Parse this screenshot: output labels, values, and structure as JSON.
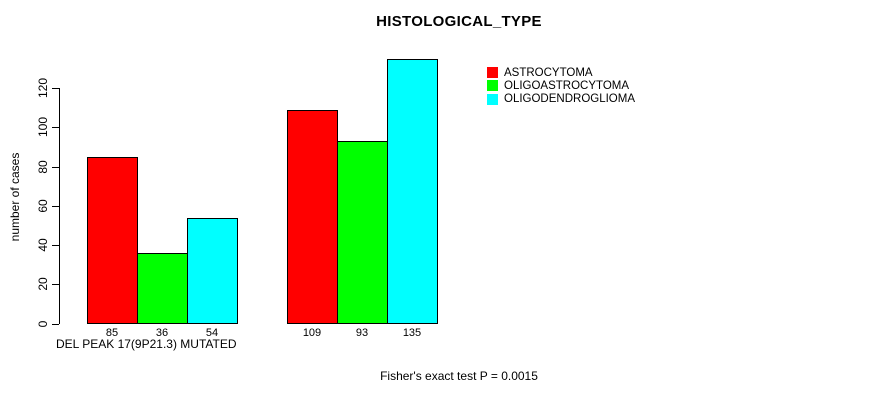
{
  "title": "HISTOLOGICAL_TYPE",
  "footer": "Fisher's exact test P = 0.0015",
  "chart_data": {
    "type": "bar",
    "title": "HISTOLOGICAL_TYPE",
    "ylabel": "number of cases",
    "xlabel": "DEL PEAK 17(9P21.3) MUTATED",
    "ylim": [
      0,
      120
    ],
    "yticks": [
      0,
      20,
      40,
      60,
      80,
      100,
      120
    ],
    "grid": false,
    "legend_position": "top-right",
    "series": [
      {
        "name": "ASTROCYTOMA",
        "color": "#ff0000"
      },
      {
        "name": "OLIGOASTROCYTOMA",
        "color": "#00ff00"
      },
      {
        "name": "OLIGODENDROGLIOMA",
        "color": "#00ffff"
      }
    ],
    "groups": [
      {
        "label": "DEL PEAK 17(9P21.3) MUTATED",
        "values": [
          85,
          36,
          54
        ]
      },
      {
        "label": "",
        "values": [
          109,
          93,
          135
        ]
      }
    ],
    "annotation": "Fisher's exact test P = 0.0015",
    "bar_outline_color": "#000000",
    "text_color": "#000000",
    "background_color": "#ffffff"
  }
}
